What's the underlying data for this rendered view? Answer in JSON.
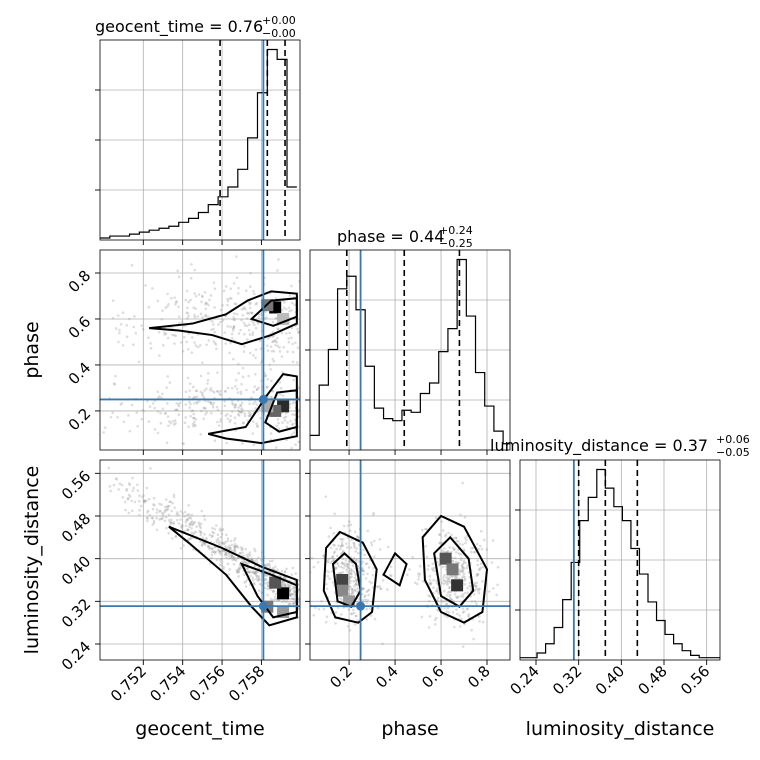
{
  "chart_data": {
    "type": "corner",
    "parameters": [
      "geocent_time",
      "phase",
      "luminosity_distance"
    ],
    "axis_labels": {
      "geocent_time": "geocent_time",
      "phase": "phase",
      "luminosity_distance": "luminosity_distance"
    },
    "titles": [
      {
        "param": "geocent_time",
        "text": "geocent_time = 0.76",
        "plus": "+0.00",
        "minus": "−0.00"
      },
      {
        "param": "phase",
        "text": "phase = 0.44",
        "plus": "+0.24",
        "minus": "−0.25"
      },
      {
        "param": "luminosity_distance",
        "text": "luminosity_distance = 0.37",
        "plus": "+0.06",
        "minus": "−0.05"
      }
    ],
    "ranges": {
      "geocent_time": [
        0.7498,
        0.75996
      ],
      "phase": [
        0.03,
        0.9
      ],
      "luminosity_distance": [
        0.21,
        0.585
      ]
    },
    "ticks": {
      "geocent_time": [
        "0.752",
        "0.754",
        "0.756",
        "0.758"
      ],
      "phase": [
        "0.2",
        "0.4",
        "0.6",
        "0.8"
      ],
      "luminosity_distance": [
        "0.24",
        "0.32",
        "0.40",
        "0.48",
        "0.56"
      ]
    },
    "truths": {
      "geocent_time": 0.7581,
      "phase": 0.25,
      "luminosity_distance": 0.311
    },
    "quantiles": {
      "geocent_time": [
        0.7559,
        0.7583,
        0.7592
      ],
      "phase": [
        0.19,
        0.44,
        0.68
      ],
      "luminosity_distance": [
        0.32,
        0.37,
        0.43
      ]
    },
    "histograms": {
      "geocent_time": {
        "edges": [
          0.7498,
          0.7503,
          0.7508,
          0.7513,
          0.7518,
          0.7523,
          0.7528,
          0.7533,
          0.7538,
          0.7543,
          0.7548,
          0.7553,
          0.7558,
          0.7563,
          0.7568,
          0.7573,
          0.7578,
          0.7583,
          0.7588,
          0.7593,
          0.7598
        ],
        "counts": [
          1,
          2,
          2,
          3,
          4,
          5,
          6,
          7,
          9,
          11,
          14,
          18,
          22,
          27,
          36,
          52,
          75,
          97,
          92,
          27
        ]
      },
      "phase": {
        "edges": [
          0.03,
          0.07,
          0.11,
          0.15,
          0.19,
          0.23,
          0.27,
          0.31,
          0.35,
          0.39,
          0.43,
          0.47,
          0.51,
          0.55,
          0.59,
          0.63,
          0.67,
          0.71,
          0.75,
          0.79,
          0.83,
          0.87,
          0.9
        ],
        "counts": [
          7,
          31,
          48,
          77,
          83,
          67,
          40,
          20,
          15,
          14,
          19,
          18,
          27,
          32,
          47,
          58,
          91,
          64,
          37,
          21,
          9,
          3
        ]
      },
      "luminosity_distance": {
        "edges": [
          0.21,
          0.226,
          0.242,
          0.258,
          0.274,
          0.29,
          0.306,
          0.322,
          0.338,
          0.354,
          0.37,
          0.386,
          0.402,
          0.418,
          0.434,
          0.45,
          0.466,
          0.482,
          0.498,
          0.514,
          0.53,
          0.546,
          0.562,
          0.585
        ],
        "counts": [
          1,
          1,
          3,
          7,
          14,
          26,
          42,
          60,
          70,
          82,
          74,
          66,
          60,
          48,
          37,
          25,
          17,
          11,
          7,
          4,
          2,
          1,
          1
        ]
      }
    },
    "grid": true,
    "colors": {
      "truth": "#3a78b0",
      "hist": "#000000",
      "contour": "#000000",
      "scatter": "#9e9e9e",
      "density": "#4a4a4a"
    }
  }
}
